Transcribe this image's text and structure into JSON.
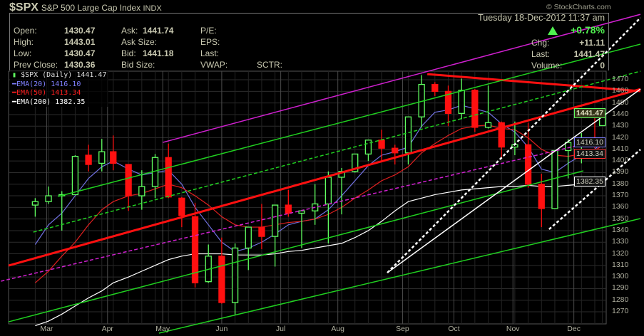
{
  "header": {
    "symbol": "$SPX",
    "name": "S&P 500 Large Cap Index",
    "exchange": "INDX",
    "watermark": "© StockCharts.com",
    "datetime": "Tuesday  18-Dec-2012  11:37 am",
    "pct_change": "+0.78%",
    "fields": [
      {
        "label": "Open:",
        "value": "1430.47"
      },
      {
        "label": "High:",
        "value": "1443.01"
      },
      {
        "label": "Low:",
        "value": "1430.47"
      },
      {
        "label": "Prev Close:",
        "value": "1430.36"
      },
      {
        "label": "Ask:",
        "value": "1441.74"
      },
      {
        "label": "Ask Size:",
        "value": ""
      },
      {
        "label": "Bid:",
        "value": "1441.18"
      },
      {
        "label": "Bid Size:",
        "value": ""
      },
      {
        "label": "P/E:",
        "value": ""
      },
      {
        "label": "EPS:",
        "value": ""
      },
      {
        "label": "Last:",
        "value": ""
      },
      {
        "label": "VWAP:",
        "value": ""
      },
      {
        "label": "SCTR:",
        "value": ""
      },
      {
        "label": "Chg:",
        "value": "+11.11"
      },
      {
        "label": "Last:",
        "value": "1441.47"
      },
      {
        "label": "Volume:",
        "value": "0"
      }
    ]
  },
  "legend": [
    {
      "label": "$SPX (Daily) 1441.47",
      "color": "#dddddd"
    },
    {
      "label": "EMA(20) 1416.10",
      "color": "#8080ff"
    },
    {
      "label": "EMA(50) 1413.34",
      "color": "#ff2020"
    },
    {
      "label": "EMA(200) 1382.35",
      "color": "#ffffff"
    }
  ],
  "price_tags": [
    {
      "label": "1441.47",
      "price": 1441.47,
      "color": "#60ff60"
    },
    {
      "label": "1416.10",
      "price": 1416.1,
      "color": "#8080ff"
    },
    {
      "label": "1413.34",
      "price": 1413.34,
      "color": "#ff3030"
    },
    {
      "label": "1382.35",
      "price": 1382.35,
      "color": "#ffffff"
    }
  ],
  "chart_data": {
    "type": "candlestick",
    "xlim": [
      "2012-02-10",
      "2012-12-20"
    ],
    "ylim": [
      1259.6,
      1477.4
    ],
    "grid": true,
    "y_ticks": [
      1270,
      1280,
      1290,
      1300,
      1310,
      1320,
      1330,
      1340,
      1350,
      1360,
      1370,
      1380,
      1390,
      1400,
      1410,
      1420,
      1430,
      1440,
      1450,
      1460,
      1470
    ],
    "x_ticks": [
      {
        "label": "Mar",
        "date": "2012-03-01"
      },
      {
        "label": "Apr",
        "date": "2012-04-02"
      },
      {
        "label": "May",
        "date": "2012-05-01"
      },
      {
        "label": "Jun",
        "date": "2012-06-01"
      },
      {
        "label": "Jul",
        "date": "2012-07-02"
      },
      {
        "label": "Aug",
        "date": "2012-08-01"
      },
      {
        "label": "Sep",
        "date": "2012-09-04"
      },
      {
        "label": "Oct",
        "date": "2012-10-01"
      },
      {
        "label": "Nov",
        "date": "2012-11-01"
      },
      {
        "label": "Dec",
        "date": "2012-12-03"
      }
    ],
    "ohlc_columns": [
      "date",
      "open",
      "high",
      "low",
      "close"
    ],
    "ohlc": [
      [
        "2012-02-24",
        1362,
        1368,
        1352,
        1365
      ],
      [
        "2012-03-02",
        1365,
        1378,
        1363,
        1370
      ],
      [
        "2012-03-09",
        1370,
        1374,
        1340,
        1371
      ],
      [
        "2012-03-16",
        1371,
        1405,
        1371,
        1404
      ],
      [
        "2012-03-23",
        1405,
        1414,
        1391,
        1397
      ],
      [
        "2012-03-30",
        1398,
        1419,
        1391,
        1408
      ],
      [
        "2012-04-05",
        1408,
        1422,
        1392,
        1398
      ],
      [
        "2012-04-13",
        1397,
        1397,
        1357,
        1370
      ],
      [
        "2012-04-20",
        1370,
        1392,
        1358,
        1378
      ],
      [
        "2012-04-27",
        1378,
        1406,
        1368,
        1403
      ],
      [
        "2012-05-04",
        1403,
        1415,
        1368,
        1369
      ],
      [
        "2012-05-11",
        1368,
        1369,
        1343,
        1353
      ],
      [
        "2012-05-18",
        1352,
        1364,
        1291,
        1295
      ],
      [
        "2012-05-25",
        1296,
        1328,
        1295,
        1318
      ],
      [
        "2012-06-01",
        1318,
        1334,
        1277,
        1278
      ],
      [
        "2012-06-08",
        1278,
        1329,
        1267,
        1325
      ],
      [
        "2012-06-15",
        1325,
        1343,
        1306,
        1343
      ],
      [
        "2012-06-22",
        1343,
        1363,
        1324,
        1335
      ],
      [
        "2012-06-29",
        1335,
        1362,
        1309,
        1362
      ],
      [
        "2012-07-06",
        1362,
        1375,
        1352,
        1355
      ],
      [
        "2012-07-13",
        1355,
        1357,
        1325,
        1357
      ],
      [
        "2012-07-20",
        1357,
        1380,
        1345,
        1363
      ],
      [
        "2012-07-27",
        1363,
        1391,
        1329,
        1386
      ],
      [
        "2012-08-03",
        1386,
        1394,
        1354,
        1391
      ],
      [
        "2012-08-10",
        1391,
        1406,
        1390,
        1406
      ],
      [
        "2012-08-17",
        1406,
        1418,
        1400,
        1418
      ],
      [
        "2012-08-24",
        1418,
        1427,
        1400,
        1411
      ],
      [
        "2012-08-31",
        1411,
        1414,
        1397,
        1407
      ],
      [
        "2012-09-07",
        1407,
        1437,
        1397,
        1438
      ],
      [
        "2012-09-14",
        1438,
        1474,
        1429,
        1466
      ],
      [
        "2012-09-21",
        1466,
        1468,
        1456,
        1460
      ],
      [
        "2012-09-28",
        1460,
        1465,
        1430,
        1441
      ],
      [
        "2012-10-05",
        1441,
        1471,
        1436,
        1461
      ],
      [
        "2012-10-12",
        1461,
        1462,
        1425,
        1429
      ],
      [
        "2012-10-19",
        1429,
        1465,
        1428,
        1433
      ],
      [
        "2012-10-26",
        1433,
        1434,
        1403,
        1412
      ],
      [
        "2012-11-02",
        1412,
        1434,
        1405,
        1414
      ],
      [
        "2012-11-09",
        1414,
        1433,
        1377,
        1380
      ],
      [
        "2012-11-16",
        1380,
        1389,
        1343,
        1359
      ],
      [
        "2012-11-23",
        1359,
        1409,
        1359,
        1409
      ],
      [
        "2012-11-30",
        1409,
        1419,
        1385,
        1416
      ],
      [
        "2012-12-07",
        1416,
        1424,
        1398,
        1418
      ],
      [
        "2012-12-14",
        1418,
        1438,
        1411,
        1413
      ],
      [
        "2012-12-18",
        1430.47,
        1443.01,
        1430.47,
        1441.47
      ]
    ],
    "series": [
      {
        "name": "EMA(20)",
        "color": "#7070e0",
        "values": [
          1328,
          1345,
          1355,
          1370,
          1385,
          1395,
          1400,
          1393,
          1388,
          1390,
          1392,
          1380,
          1360,
          1345,
          1330,
          1322,
          1325,
          1330,
          1337,
          1345,
          1348,
          1350,
          1358,
          1370,
          1383,
          1396,
          1405,
          1408,
          1412,
          1430,
          1442,
          1444,
          1448,
          1445,
          1442,
          1432,
          1425,
          1412,
          1393,
          1390,
          1398,
          1405,
          1410,
          1416.1
        ]
      },
      {
        "name": "EMA(50)",
        "color": "#e02020",
        "values": [
          1295,
          1305,
          1318,
          1330,
          1345,
          1358,
          1365,
          1370,
          1372,
          1376,
          1380,
          1377,
          1370,
          1362,
          1352,
          1345,
          1343,
          1343,
          1345,
          1347,
          1348,
          1350,
          1354,
          1360,
          1368,
          1375,
          1383,
          1388,
          1395,
          1407,
          1415,
          1422,
          1428,
          1430,
          1431,
          1428,
          1427,
          1420,
          1410,
          1405,
          1404,
          1406,
          1409,
          1413.34
        ]
      },
      {
        "name": "EMA(200)",
        "color": "#ffffff",
        "values": [
          1258,
          1262,
          1268,
          1275,
          1282,
          1288,
          1295,
          1300,
          1305,
          1310,
          1315,
          1318,
          1320,
          1320,
          1320,
          1319,
          1319,
          1319,
          1320,
          1322,
          1323,
          1325,
          1327,
          1329,
          1334,
          1340,
          1348,
          1357,
          1365,
          1368,
          1371,
          1373,
          1375,
          1376,
          1377,
          1378,
          1378,
          1379,
          1378,
          1378,
          1379,
          1380,
          1381,
          1382.35
        ]
      }
    ],
    "trendlines": [
      {
        "color": "#d020d0",
        "style": "solid",
        "from": [
          "2012-05-01",
          1416.0
        ],
        "to": [
          "2013-01-07",
          1526.4
        ]
      },
      {
        "color": "#d020d0",
        "style": "dashed",
        "from": [
          "2012-02-06",
          1296.4
        ],
        "to": [
          "2012-12-20",
          1419.1
        ]
      },
      {
        "color": "#ff1010",
        "style": "thick",
        "from": [
          "2012-02-10",
          1309.9
        ],
        "to": [
          "2013-01-07",
          1462.0
        ]
      },
      {
        "color": "#ff1010",
        "style": "thick",
        "from": [
          "2012-09-17",
          1474.9
        ],
        "to": [
          "2013-01-07",
          1460.2
        ]
      },
      {
        "color": "#20d020",
        "style": "solid",
        "from": [
          "2012-03-07",
          1369.4
        ],
        "to": [
          "2013-01-07",
          1500.7
        ]
      },
      {
        "color": "#20d020",
        "style": "dashed",
        "from": [
          "2012-02-23",
          1338.7
        ],
        "to": [
          "2013-01-07",
          1477.4
        ]
      },
      {
        "color": "#20d020",
        "style": "solid",
        "from": [
          "2012-02-10",
          1261.4
        ],
        "to": [
          "2012-12-08",
          1391.5
        ]
      },
      {
        "color": "#20d020",
        "style": "solid",
        "from": [
          "2012-04-29",
          1251.6
        ],
        "to": [
          "2013-01-07",
          1350.4
        ]
      },
      {
        "color": "#ffffff",
        "style": "solid",
        "from": [
          "2012-08-27",
          1303.7
        ],
        "to": [
          "2013-01-07",
          1462.0
        ]
      },
      {
        "color": "#ffffff",
        "style": "dotted",
        "from": [
          "2012-08-27",
          1303.7
        ],
        "to": [
          "2013-01-07",
          1523.4
        ]
      },
      {
        "color": "#ffffff",
        "style": "dotted",
        "from": [
          "2012-11-20",
          1341.2
        ],
        "to": [
          "2013-01-07",
          1409.9
        ]
      }
    ]
  }
}
